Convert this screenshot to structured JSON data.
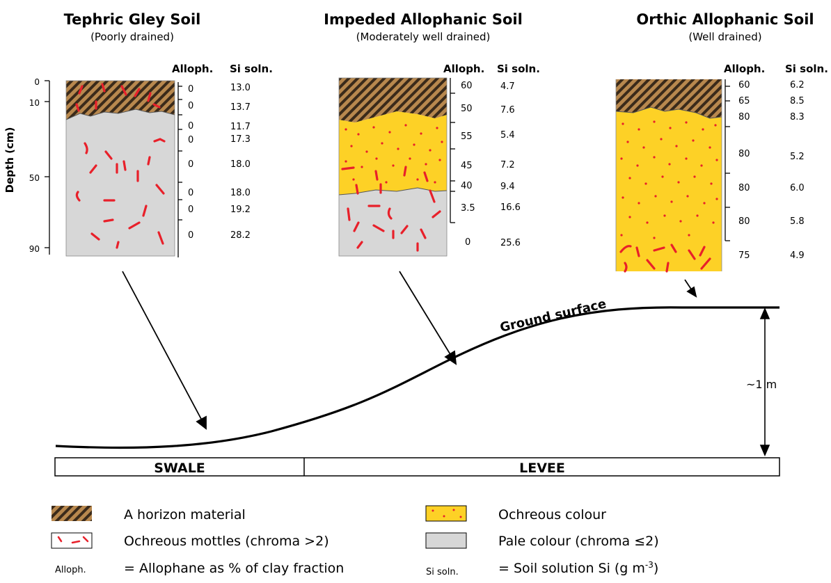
{
  "profiles": [
    {
      "title": "Tephric Gley Soil",
      "drainage": "(Poorly drained)",
      "col_alloph": "Alloph.",
      "col_si": "Si soln.",
      "alloph": [
        "0",
        "0",
        "0",
        "0",
        "0",
        "0",
        "0",
        "0"
      ],
      "si": [
        "13.0",
        "13.7",
        "11.7",
        "17.3",
        "18.0",
        "18.0",
        "19.2",
        "28.2"
      ]
    },
    {
      "title": "Impeded Allophanic Soil",
      "drainage": "(Moderately well drained)",
      "col_alloph": "Alloph.",
      "col_si": "Si soln.",
      "alloph": [
        "60",
        "50",
        "55",
        "45",
        "40",
        "3.5",
        "0"
      ],
      "si": [
        "4.7",
        "7.6",
        "5.4",
        "7.2",
        "9.4",
        "16.6",
        "25.6"
      ]
    },
    {
      "title": "Orthic Allophanic Soil",
      "drainage": "(Well drained)",
      "col_alloph": "Alloph.",
      "col_si": "Si soln.",
      "alloph": [
        "60",
        "65",
        "80",
        "80",
        "80",
        "80",
        "75"
      ],
      "si": [
        "6.2",
        "8.5",
        "8.3",
        "5.2",
        "6.0",
        "5.8",
        "4.9"
      ]
    }
  ],
  "depth_axis": {
    "label": "Depth (cm)",
    "ticks": [
      "0",
      "10",
      "50",
      "90"
    ]
  },
  "landscape": {
    "ground_surface": "Ground surface",
    "height": "~1 m",
    "swale": "SWALE",
    "levee": "LEVEE"
  },
  "legend": {
    "a_horizon": "A horizon material",
    "mottles": "Ochreous mottles (chroma >2)",
    "ochreous": "Ochreous colour",
    "pale": "Pale colour  (chroma ≤2)",
    "alloph_key": "Alloph.",
    "alloph_def": "= Allophane as % of clay fraction",
    "si_key": "Si soln.",
    "si_def": "= Soil solution Si (g m",
    "si_unit_exp": "-3",
    "si_def_close": ")"
  },
  "colors": {
    "a_horizon_dark": "#3a2a1a",
    "a_horizon_light": "#b8884e",
    "ochreous": "#fdd126",
    "pale": "#d7d7d7",
    "mottle_red": "#e8202a"
  }
}
